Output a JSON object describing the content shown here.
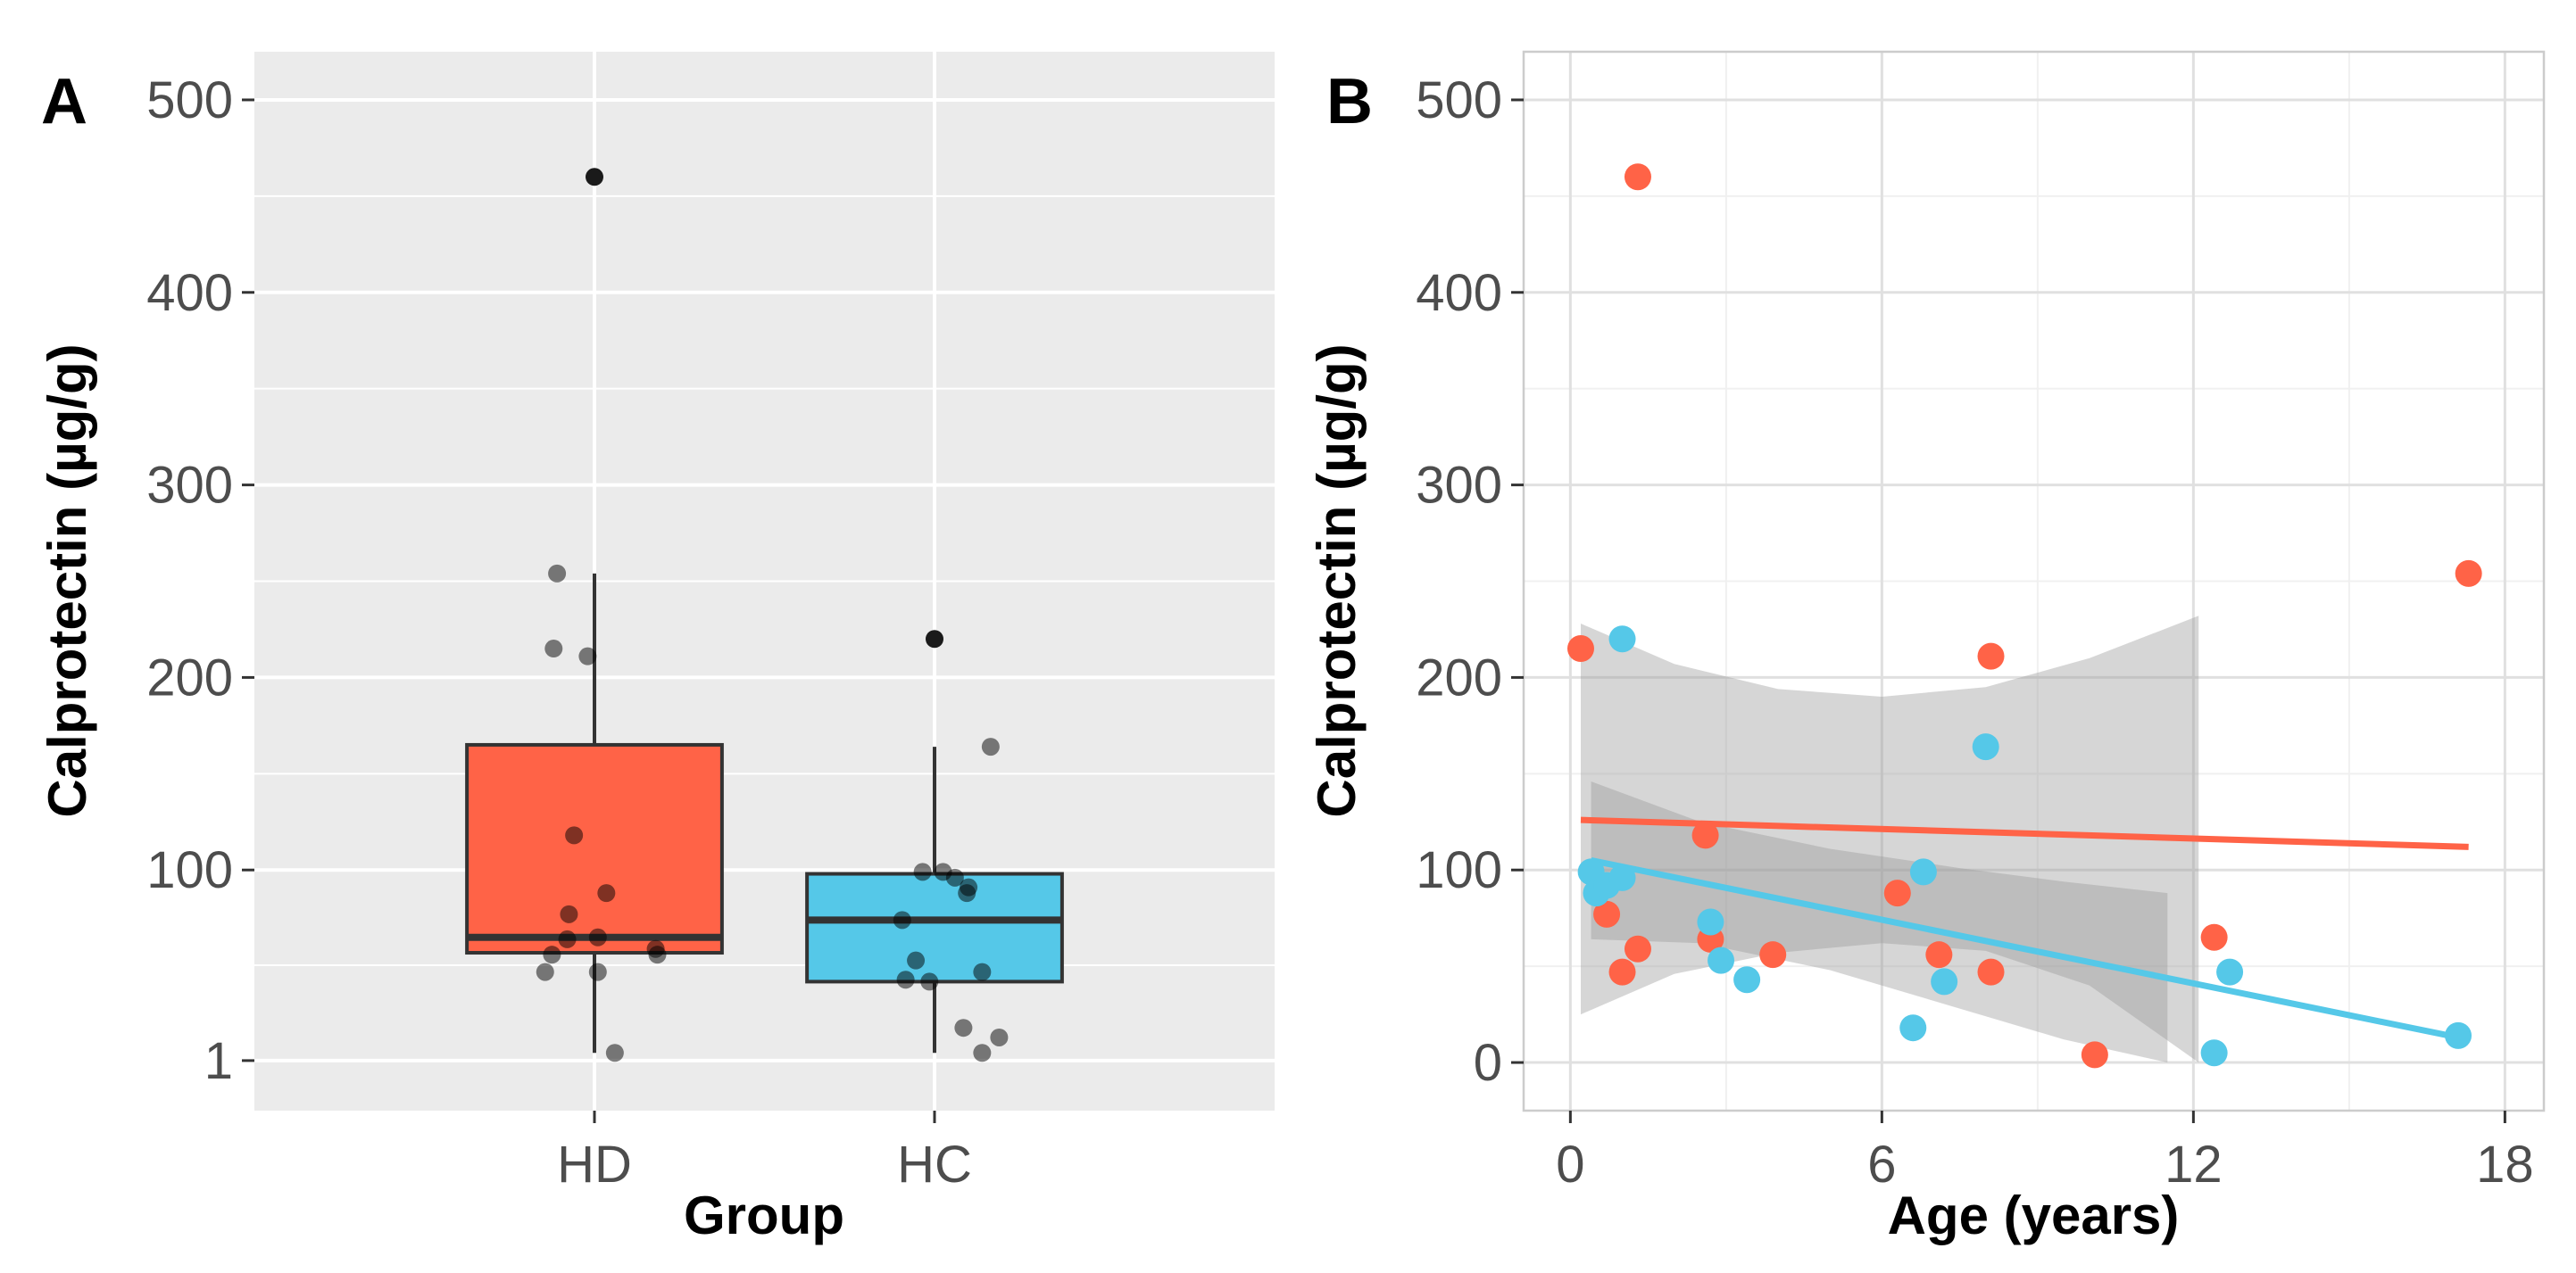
{
  "chart_data": [
    {
      "panel": "A",
      "type": "box",
      "theme": "gray",
      "xlabel": "Group",
      "ylabel": "Calprotectin (µg/g)",
      "y_ticks": [
        1,
        100,
        200,
        300,
        400,
        500
      ],
      "y_tick_labels": [
        "1",
        "100",
        "200",
        "300",
        "400",
        "500"
      ],
      "ylim": [
        -25,
        525
      ],
      "grid": true,
      "categories": [
        "HD",
        "HC"
      ],
      "colors": [
        "#FF6347",
        "#55C8E8"
      ],
      "boxes": [
        {
          "group": "HD",
          "min": 5,
          "q1": 57,
          "median": 65,
          "q3": 165,
          "max": 254,
          "outliers": [
            460
          ]
        },
        {
          "group": "HC",
          "min": 5,
          "q1": 42,
          "median": 74,
          "q3": 98,
          "max": 164,
          "outliers": [
            220
          ]
        }
      ],
      "jitter_points": [
        {
          "group": "HD",
          "dx": -0.11,
          "y": 254
        },
        {
          "group": "HD",
          "dx": -0.12,
          "y": 215
        },
        {
          "group": "HD",
          "dx": -0.02,
          "y": 211
        },
        {
          "group": "HD",
          "dx": -0.06,
          "y": 118
        },
        {
          "group": "HD",
          "dx": 0.035,
          "y": 88
        },
        {
          "group": "HD",
          "dx": -0.075,
          "y": 77
        },
        {
          "group": "HD",
          "dx": -0.08,
          "y": 64
        },
        {
          "group": "HD",
          "dx": 0.01,
          "y": 65
        },
        {
          "group": "HD",
          "dx": 0.18,
          "y": 59
        },
        {
          "group": "HD",
          "dx": 0.185,
          "y": 56
        },
        {
          "group": "HD",
          "dx": -0.125,
          "y": 56
        },
        {
          "group": "HD",
          "dx": -0.145,
          "y": 47
        },
        {
          "group": "HD",
          "dx": 0.01,
          "y": 47
        },
        {
          "group": "HD",
          "dx": 0.06,
          "y": 5
        },
        {
          "group": "HC",
          "dx": -0.035,
          "y": 99
        },
        {
          "group": "HC",
          "dx": 0.025,
          "y": 99
        },
        {
          "group": "HC",
          "dx": 0.06,
          "y": 96
        },
        {
          "group": "HC",
          "dx": 0.1,
          "y": 91
        },
        {
          "group": "HC",
          "dx": 0.095,
          "y": 88
        },
        {
          "group": "HC",
          "dx": -0.095,
          "y": 74
        },
        {
          "group": "HC",
          "dx": -0.055,
          "y": 53
        },
        {
          "group": "HC",
          "dx": 0.14,
          "y": 47
        },
        {
          "group": "HC",
          "dx": -0.085,
          "y": 43
        },
        {
          "group": "HC",
          "dx": -0.015,
          "y": 42
        },
        {
          "group": "HC",
          "dx": 0.165,
          "y": 164
        },
        {
          "group": "HC",
          "dx": 0.085,
          "y": 18
        },
        {
          "group": "HC",
          "dx": 0.19,
          "y": 13
        },
        {
          "group": "HC",
          "dx": 0.14,
          "y": 5
        }
      ]
    },
    {
      "panel": "B",
      "type": "scatter",
      "theme": "light",
      "xlabel": "Age (years)",
      "ylabel": "Calprotectin (µg/g)",
      "x_ticks": [
        0,
        6,
        12,
        18
      ],
      "x_tick_labels": [
        "0",
        "6",
        "12",
        "18"
      ],
      "y_ticks": [
        0,
        100,
        200,
        300,
        400,
        500
      ],
      "y_tick_labels": [
        "0",
        "100",
        "200",
        "300",
        "400",
        "500"
      ],
      "xlim": [
        -0.9,
        18.75
      ],
      "ylim": [
        -25,
        525
      ],
      "grid": true,
      "series": [
        {
          "name": "HD",
          "color": "#FF6347",
          "points": [
            {
              "x": 0.2,
              "y": 215
            },
            {
              "x": 1.3,
              "y": 460
            },
            {
              "x": 0.7,
              "y": 77
            },
            {
              "x": 1.0,
              "y": 47
            },
            {
              "x": 1.3,
              "y": 59
            },
            {
              "x": 2.6,
              "y": 118
            },
            {
              "x": 2.7,
              "y": 64
            },
            {
              "x": 3.9,
              "y": 56
            },
            {
              "x": 6.3,
              "y": 88
            },
            {
              "x": 7.1,
              "y": 56
            },
            {
              "x": 8.1,
              "y": 211
            },
            {
              "x": 8.1,
              "y": 47
            },
            {
              "x": 10.1,
              "y": 4
            },
            {
              "x": 12.4,
              "y": 65
            },
            {
              "x": 17.3,
              "y": 254
            }
          ],
          "trend": {
            "x": [
              0.2,
              17.3
            ],
            "y": [
              126,
              112
            ]
          },
          "band": {
            "x": [
              0.2,
              2,
              4,
              6,
              8,
              10,
              12.1
            ],
            "upper": [
              228,
              207,
              194,
              190,
              195,
              210,
              232
            ],
            "lower": [
              25,
              46,
              57,
              62,
              58,
              40,
              0
            ]
          }
        },
        {
          "name": "HC",
          "color": "#55C8E8",
          "points": [
            {
              "x": 0.4,
              "y": 99
            },
            {
              "x": 0.5,
              "y": 88
            },
            {
              "x": 0.7,
              "y": 92
            },
            {
              "x": 1.0,
              "y": 96
            },
            {
              "x": 1.0,
              "y": 220
            },
            {
              "x": 2.7,
              "y": 73
            },
            {
              "x": 2.9,
              "y": 53
            },
            {
              "x": 3.4,
              "y": 43
            },
            {
              "x": 6.6,
              "y": 18
            },
            {
              "x": 6.8,
              "y": 99
            },
            {
              "x": 7.2,
              "y": 42
            },
            {
              "x": 8.0,
              "y": 164
            },
            {
              "x": 12.4,
              "y": 5
            },
            {
              "x": 12.7,
              "y": 47
            },
            {
              "x": 17.1,
              "y": 14
            }
          ],
          "trend": {
            "x": [
              0.4,
              17.1
            ],
            "y": [
              105,
              13
            ]
          },
          "band": {
            "x": [
              0.4,
              2.5,
              5,
              7.5,
              9.5,
              11.5
            ],
            "upper": [
              146,
              125,
              111,
              101,
              94,
              88
            ],
            "lower": [
              64,
              62,
              48,
              28,
              12,
              0
            ]
          }
        }
      ]
    }
  ],
  "panels": {
    "a_label": "A",
    "b_label": "B"
  }
}
